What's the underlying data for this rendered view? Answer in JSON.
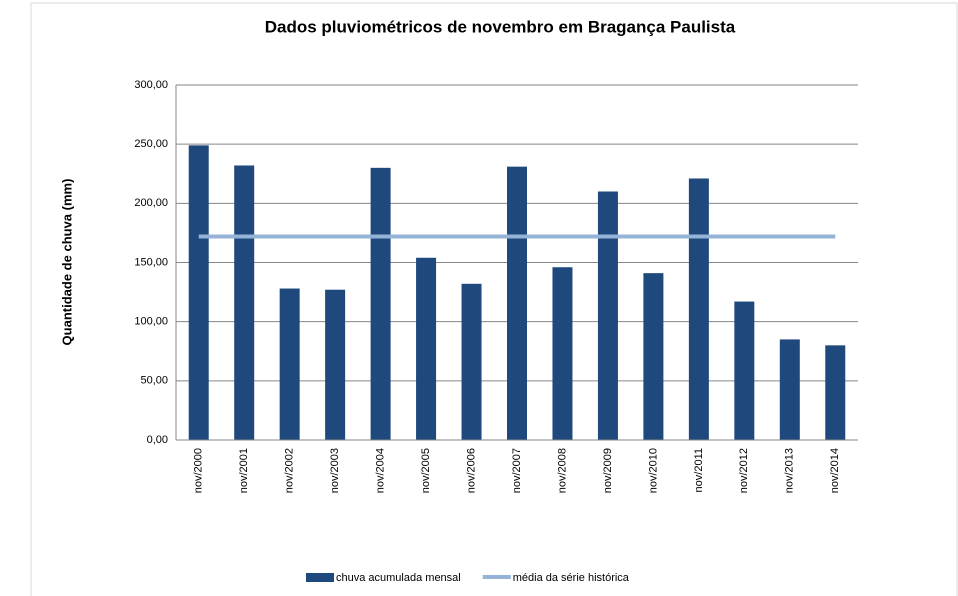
{
  "chart_data": {
    "type": "bar",
    "title": "Dados pluviométricos de novembro em Bragança Paulista",
    "y_label": "Quantidade de chuva (mm)",
    "categories": [
      "nov/2000",
      "nov/2001",
      "nov/2002",
      "nov/2003",
      "nov/2004",
      "nov/2005",
      "nov/2006",
      "nov/2007",
      "nov/2008",
      "nov/2009",
      "nov/2010",
      "nov/2011",
      "nov/2012",
      "nov/2013",
      "nov/2014"
    ],
    "series": [
      {
        "name": "chuva acumulada mensal",
        "type": "bar",
        "color": "#1f497d",
        "values": [
          249,
          232,
          128,
          127,
          230,
          154,
          132,
          231,
          146,
          210,
          141,
          221,
          117,
          85,
          80
        ]
      },
      {
        "name": "média da série histórica",
        "type": "line",
        "color": "#95b3d7",
        "values": [
          172,
          172,
          172,
          172,
          172,
          172,
          172,
          172,
          172,
          172,
          172,
          172,
          172,
          172,
          172
        ]
      }
    ],
    "ylim": [
      0,
      300
    ],
    "yticks": [
      {
        "value": 0,
        "label": "0,00"
      },
      {
        "value": 50,
        "label": "50,00"
      },
      {
        "value": 100,
        "label": "100,00"
      },
      {
        "value": 150,
        "label": "150,00"
      },
      {
        "value": 200,
        "label": "200,00"
      },
      {
        "value": 250,
        "label": "250,00"
      },
      {
        "value": 300,
        "label": "300,00"
      }
    ],
    "grid": true,
    "legend": "bottom"
  }
}
